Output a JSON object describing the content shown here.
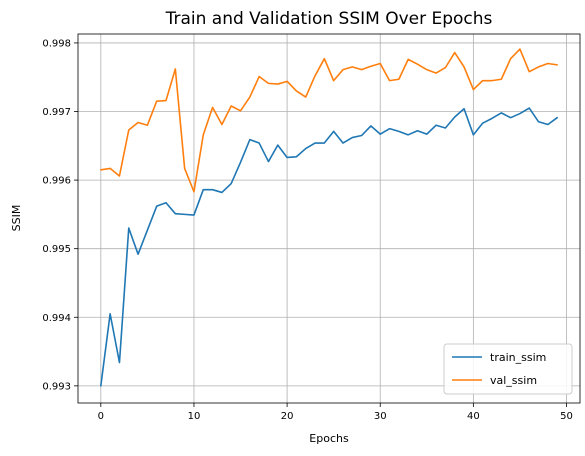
{
  "chart_data": {
    "type": "line",
    "title": "Train and Validation SSIM Over Epochs",
    "xlabel": "Epochs",
    "ylabel": "SSIM",
    "xlim": [
      -2.45,
      51.45
    ],
    "ylim": [
      0.99275,
      0.99813
    ],
    "xticks": [
      0,
      10,
      20,
      30,
      40,
      50
    ],
    "yticks": [
      0.993,
      0.994,
      0.995,
      0.996,
      0.997,
      0.998
    ],
    "ytick_labels": [
      "0.993",
      "0.994",
      "0.995",
      "0.996",
      "0.997",
      "0.998"
    ],
    "grid": true,
    "legend_position": "bottom-right",
    "x": [
      0,
      1,
      2,
      3,
      4,
      5,
      6,
      7,
      8,
      9,
      10,
      11,
      12,
      13,
      14,
      15,
      16,
      17,
      18,
      19,
      20,
      21,
      22,
      23,
      24,
      25,
      26,
      27,
      28,
      29,
      30,
      31,
      32,
      33,
      34,
      35,
      36,
      37,
      38,
      39,
      40,
      41,
      42,
      43,
      44,
      45,
      46,
      47,
      48,
      49
    ],
    "series": [
      {
        "name": "train_ssim",
        "color": "#1f77b4",
        "values": [
          0.993,
          0.99405,
          0.99334,
          0.9953,
          0.99492,
          0.99527,
          0.99562,
          0.99567,
          0.99551,
          0.9955,
          0.99549,
          0.99586,
          0.99586,
          0.99582,
          0.99595,
          0.99626,
          0.99659,
          0.99654,
          0.99627,
          0.99651,
          0.99633,
          0.99634,
          0.99646,
          0.99654,
          0.99654,
          0.99671,
          0.99654,
          0.99662,
          0.99665,
          0.99679,
          0.99667,
          0.99675,
          0.99671,
          0.99666,
          0.99672,
          0.99667,
          0.9968,
          0.99676,
          0.99692,
          0.99704,
          0.99666,
          0.99683,
          0.9969,
          0.99698,
          0.99691,
          0.99697,
          0.99705,
          0.99685,
          0.99681,
          0.99691
        ]
      },
      {
        "name": "val_ssim",
        "color": "#ff7f0e",
        "values": [
          0.99615,
          0.99617,
          0.99606,
          0.99673,
          0.99684,
          0.9968,
          0.99715,
          0.99716,
          0.99762,
          0.99617,
          0.99583,
          0.99666,
          0.99706,
          0.99681,
          0.99708,
          0.99701,
          0.99721,
          0.99751,
          0.99741,
          0.9974,
          0.99744,
          0.9973,
          0.99721,
          0.99752,
          0.99777,
          0.99745,
          0.99761,
          0.99765,
          0.99761,
          0.99766,
          0.9977,
          0.99745,
          0.99747,
          0.99776,
          0.99769,
          0.99761,
          0.99756,
          0.99764,
          0.99786,
          0.99765,
          0.99732,
          0.99745,
          0.99745,
          0.99747,
          0.99777,
          0.99791,
          0.99758,
          0.99765,
          0.9977,
          0.99768
        ]
      }
    ]
  }
}
